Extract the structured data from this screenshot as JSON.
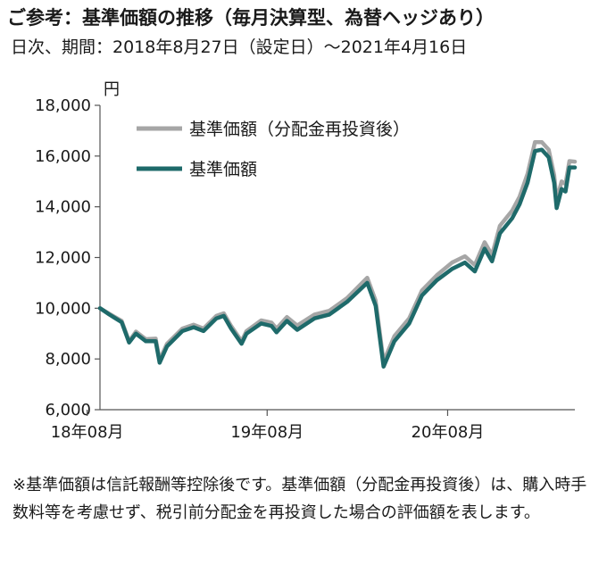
{
  "header": {
    "title": "ご参考：基準価額の推移（毎月決算型、為替ヘッジあり）",
    "subtitle": "日次、期間：2018年8月27日（設定日）～2021年4月16日"
  },
  "chart_data": {
    "type": "line",
    "unit_label": "円",
    "ylim": [
      6000,
      18000
    ],
    "yticks": [
      6000,
      8000,
      10000,
      12000,
      14000,
      16000,
      18000
    ],
    "ytick_labels": [
      "6,000",
      "8,000",
      "10,000",
      "12,000",
      "14,000",
      "16,000",
      "18,000"
    ],
    "xlim": [
      "2018-08-27",
      "2021-04-16"
    ],
    "xticks": [
      "2018-08",
      "2019-08",
      "2020-08"
    ],
    "xtick_labels": [
      "18年08月",
      "19年08月",
      "20年08月"
    ],
    "grid": false,
    "legend_position": "top-left",
    "series": [
      {
        "name": "基準価額（分配金再投資後）",
        "color": "#a6a6a6",
        "points": [
          [
            "2018-08-27",
            10000
          ],
          [
            "2018-09-15",
            9780
          ],
          [
            "2018-10-10",
            9500
          ],
          [
            "2018-10-25",
            8700
          ],
          [
            "2018-11-08",
            9080
          ],
          [
            "2018-11-28",
            8780
          ],
          [
            "2018-12-18",
            8800
          ],
          [
            "2018-12-26",
            7960
          ],
          [
            "2019-01-10",
            8600
          ],
          [
            "2019-02-10",
            9200
          ],
          [
            "2019-03-05",
            9350
          ],
          [
            "2019-03-25",
            9200
          ],
          [
            "2019-04-20",
            9700
          ],
          [
            "2019-05-05",
            9800
          ],
          [
            "2019-05-20",
            9300
          ],
          [
            "2019-06-10",
            8700
          ],
          [
            "2019-06-20",
            9100
          ],
          [
            "2019-07-20",
            9520
          ],
          [
            "2019-08-10",
            9430
          ],
          [
            "2019-08-20",
            9200
          ],
          [
            "2019-09-10",
            9650
          ],
          [
            "2019-10-01",
            9320
          ],
          [
            "2019-11-05",
            9750
          ],
          [
            "2019-12-05",
            9900
          ],
          [
            "2020-01-10",
            10400
          ],
          [
            "2020-02-20",
            11200
          ],
          [
            "2020-03-08",
            10300
          ],
          [
            "2020-03-24",
            7900
          ],
          [
            "2020-04-15",
            8900
          ],
          [
            "2020-05-15",
            9600
          ],
          [
            "2020-06-10",
            10700
          ],
          [
            "2020-07-10",
            11300
          ],
          [
            "2020-08-10",
            11800
          ],
          [
            "2020-09-05",
            12050
          ],
          [
            "2020-09-25",
            11700
          ],
          [
            "2020-10-15",
            12600
          ],
          [
            "2020-10-30",
            12100
          ],
          [
            "2020-11-15",
            13250
          ],
          [
            "2020-12-10",
            13850
          ],
          [
            "2020-12-25",
            14400
          ],
          [
            "2021-01-10",
            15300
          ],
          [
            "2021-01-25",
            16550
          ],
          [
            "2021-02-08",
            16550
          ],
          [
            "2021-02-22",
            16250
          ],
          [
            "2021-03-05",
            15250
          ],
          [
            "2021-03-10",
            14250
          ],
          [
            "2021-03-20",
            15000
          ],
          [
            "2021-03-28",
            14900
          ],
          [
            "2021-04-05",
            15800
          ],
          [
            "2021-04-16",
            15780
          ]
        ]
      },
      {
        "name": "基準価額",
        "color": "#1e6a6a",
        "points": [
          [
            "2018-08-27",
            10000
          ],
          [
            "2018-09-15",
            9750
          ],
          [
            "2018-10-10",
            9450
          ],
          [
            "2018-10-25",
            8650
          ],
          [
            "2018-11-08",
            9000
          ],
          [
            "2018-11-28",
            8700
          ],
          [
            "2018-12-18",
            8700
          ],
          [
            "2018-12-26",
            7850
          ],
          [
            "2019-01-10",
            8500
          ],
          [
            "2019-02-10",
            9100
          ],
          [
            "2019-03-05",
            9250
          ],
          [
            "2019-03-25",
            9100
          ],
          [
            "2019-04-20",
            9600
          ],
          [
            "2019-05-05",
            9700
          ],
          [
            "2019-05-20",
            9200
          ],
          [
            "2019-06-10",
            8600
          ],
          [
            "2019-06-20",
            9000
          ],
          [
            "2019-07-20",
            9400
          ],
          [
            "2019-08-10",
            9300
          ],
          [
            "2019-08-20",
            9050
          ],
          [
            "2019-09-10",
            9500
          ],
          [
            "2019-10-01",
            9150
          ],
          [
            "2019-11-05",
            9600
          ],
          [
            "2019-12-05",
            9750
          ],
          [
            "2020-01-10",
            10250
          ],
          [
            "2020-02-20",
            11000
          ],
          [
            "2020-03-08",
            10100
          ],
          [
            "2020-03-24",
            7700
          ],
          [
            "2020-04-15",
            8700
          ],
          [
            "2020-05-15",
            9400
          ],
          [
            "2020-06-10",
            10500
          ],
          [
            "2020-07-10",
            11100
          ],
          [
            "2020-08-10",
            11550
          ],
          [
            "2020-09-05",
            11800
          ],
          [
            "2020-09-25",
            11450
          ],
          [
            "2020-10-15",
            12350
          ],
          [
            "2020-10-30",
            11850
          ],
          [
            "2020-11-15",
            12950
          ],
          [
            "2020-12-10",
            13550
          ],
          [
            "2020-12-25",
            14100
          ],
          [
            "2021-01-10",
            14950
          ],
          [
            "2021-01-25",
            16200
          ],
          [
            "2021-02-08",
            16250
          ],
          [
            "2021-02-22",
            15950
          ],
          [
            "2021-03-05",
            14950
          ],
          [
            "2021-03-10",
            13950
          ],
          [
            "2021-03-20",
            14700
          ],
          [
            "2021-03-28",
            14600
          ],
          [
            "2021-04-05",
            15550
          ],
          [
            "2021-04-16",
            15550
          ]
        ]
      }
    ]
  },
  "footnote": "※基準価額は信託報酬等控除後です。基準価額（分配金再投資後）は、購入時手数料等を考慮せず、税引前分配金を再投資した場合の評価額を表します。"
}
